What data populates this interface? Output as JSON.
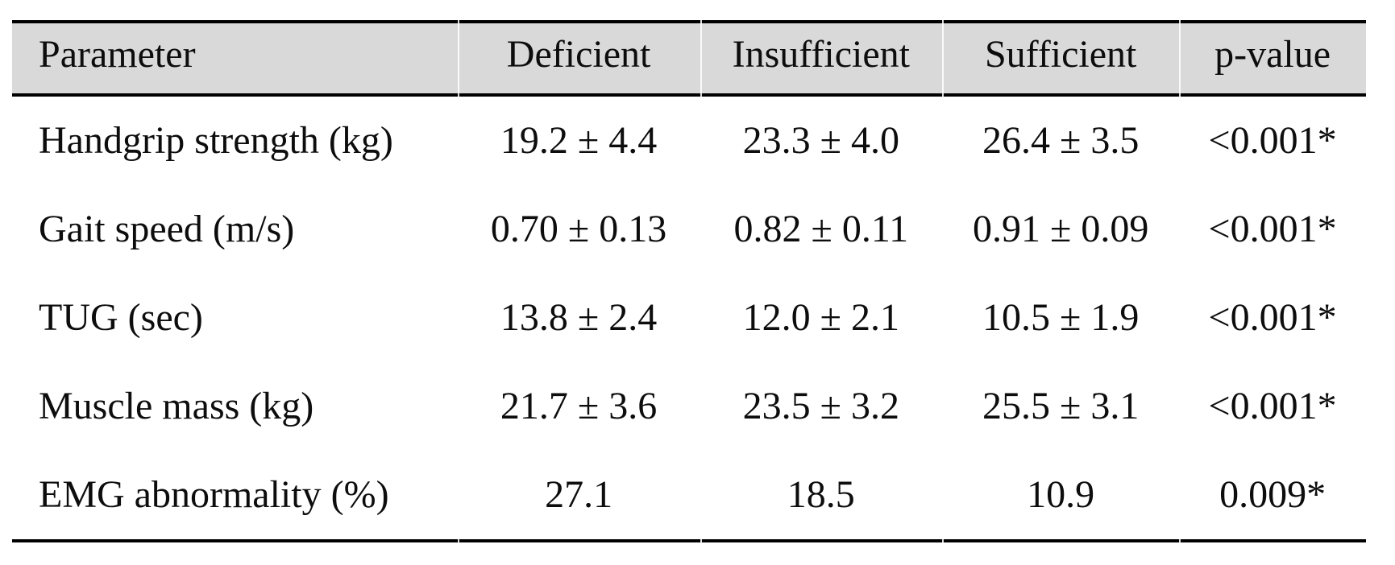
{
  "table": {
    "columns": [
      {
        "label": "Parameter"
      },
      {
        "label": "Deficient"
      },
      {
        "label": "Insufficient"
      },
      {
        "label": "Sufficient"
      },
      {
        "label": "p-value"
      }
    ],
    "rows": [
      {
        "parameter": "Handgrip strength (kg)",
        "deficient": "19.2 ± 4.4",
        "insufficient": "23.3 ± 4.0",
        "sufficient": "26.4 ± 3.5",
        "p_value": "<0.001*"
      },
      {
        "parameter": "Gait speed (m/s)",
        "deficient": "0.70 ± 0.13",
        "insufficient": "0.82 ± 0.11",
        "sufficient": "0.91 ± 0.09",
        "p_value": "<0.001*"
      },
      {
        "parameter": "TUG (sec)",
        "deficient": "13.8 ± 2.4",
        "insufficient": "12.0 ± 2.1",
        "sufficient": "10.5 ± 1.9",
        "p_value": "<0.001*"
      },
      {
        "parameter": "Muscle mass (kg)",
        "deficient": "21.7 ± 3.6",
        "insufficient": "23.5 ± 3.2",
        "sufficient": "25.5 ± 3.1",
        "p_value": "<0.001*"
      },
      {
        "parameter": "EMG abnormality (%)",
        "deficient": "27.1",
        "insufficient": "18.5",
        "sufficient": "10.9",
        "p_value": "0.009*"
      }
    ],
    "style": {
      "header_bg": "#d9d9d9",
      "rule_color": "#000000",
      "text_color": "#0d0d0d"
    }
  },
  "chart_data": {
    "type": "table",
    "columns": [
      "Parameter",
      "Deficient",
      "Insufficient",
      "Sufficient",
      "p-value"
    ],
    "rows": [
      [
        "Handgrip strength (kg)",
        "19.2 ± 4.4",
        "23.3 ± 4.0",
        "26.4 ± 3.5",
        "<0.001*"
      ],
      [
        "Gait speed (m/s)",
        "0.70 ± 0.13",
        "0.82 ± 0.11",
        "0.91 ± 0.09",
        "<0.001*"
      ],
      [
        "TUG (sec)",
        "13.8 ± 2.4",
        "12.0 ± 2.1",
        "10.5 ± 1.9",
        "<0.001*"
      ],
      [
        "Muscle mass (kg)",
        "21.7 ± 3.6",
        "23.5 ± 3.2",
        "25.5 ± 3.1",
        "<0.001*"
      ],
      [
        "EMG abnormality (%)",
        "27.1",
        "18.5",
        "10.9",
        "0.009*"
      ]
    ]
  }
}
